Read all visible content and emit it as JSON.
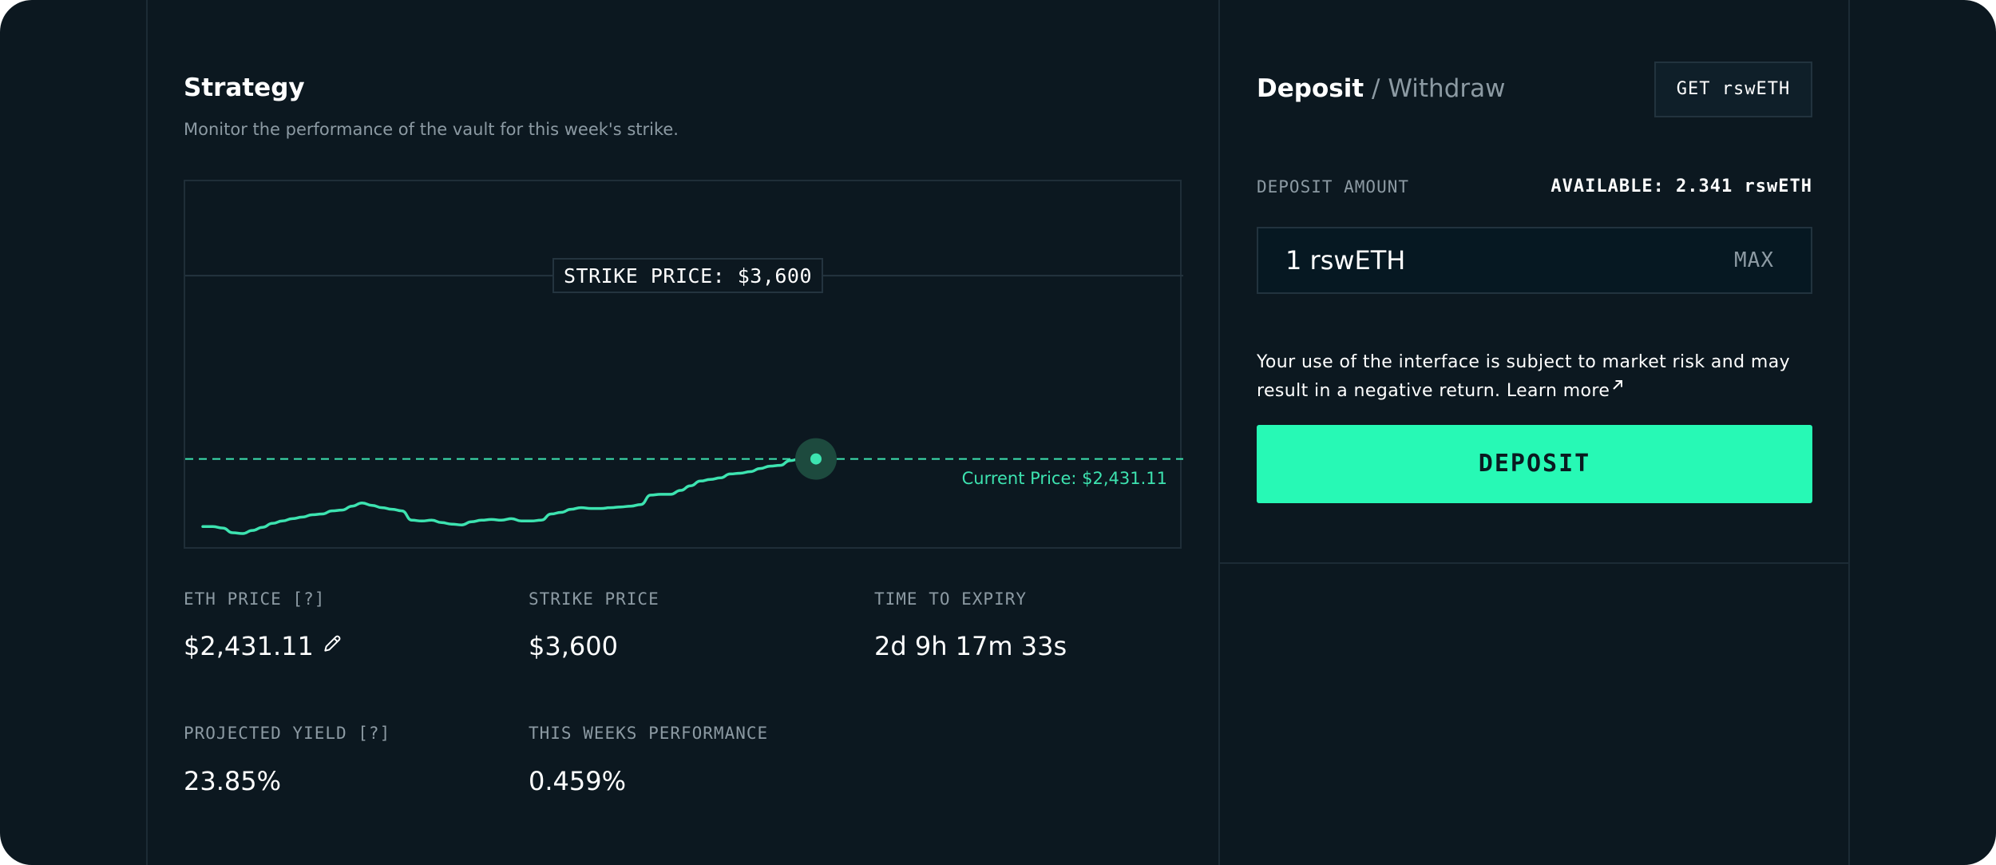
{
  "strategy": {
    "title": "Strategy",
    "subtitle": "Monitor the performance of the vault for this week's strike."
  },
  "chart_data": {
    "type": "line",
    "title": "",
    "xlabel": "",
    "ylabel": "",
    "grid": false,
    "annotations": [
      {
        "label": "STRIKE PRICE: $3,600",
        "value": 3600,
        "style": "solid"
      },
      {
        "label": "Current Price: $2,431.11",
        "value": 2431.11,
        "style": "dashed"
      }
    ],
    "ylim": [
      1950,
      4100
    ],
    "series": [
      {
        "values": [
          2000,
          2000,
          1990,
          1960,
          1955,
          1975,
          1995,
          2020,
          2035,
          2050,
          2060,
          2075,
          2080,
          2100,
          2105,
          2130,
          2150,
          2135,
          2120,
          2110,
          2100,
          2040,
          2035,
          2040,
          2025,
          2015,
          2010,
          2030,
          2040,
          2045,
          2040,
          2050,
          2035,
          2035,
          2040,
          2080,
          2090,
          2110,
          2120,
          2115,
          2115,
          2120,
          2125,
          2130,
          2140,
          2200,
          2205,
          2205,
          2230,
          2260,
          2290,
          2300,
          2310,
          2335,
          2340,
          2350,
          2370,
          2385,
          2390,
          2420,
          2431.11
        ]
      }
    ]
  },
  "stats": {
    "eth_price_label": "ETH PRICE [?]",
    "eth_price_value": "$2,431.11",
    "strike_price_label": "STRIKE PRICE",
    "strike_price_value": "$3,600",
    "expiry_label": "TIME TO EXPIRY",
    "expiry_value": "2d 9h 17m 33s",
    "yield_label": "PROJECTED YIELD [?]",
    "yield_value": "23.85%",
    "performance_label": "THIS WEEKS PERFORMANCE",
    "performance_value": "0.459%"
  },
  "deposit": {
    "tab_deposit": "Deposit",
    "tab_separator": " / ",
    "tab_withdraw": "Withdraw",
    "get_button": "GET rswETH",
    "amount_label": "DEPOSIT AMOUNT",
    "available": "AVAILABLE: 2.341 rswETH",
    "amount_value": "1 rswETH",
    "max_button": "MAX",
    "disclaimer": "Your use of the interface is subject to market risk and may result in a negative return.",
    "learn_more": "Learn more",
    "deposit_button": "DEPOSIT"
  },
  "colors": {
    "background": "#0c1820",
    "accent": "#27f9b5",
    "line": "#3de3b0",
    "muted_text": "#8c9aa3"
  },
  "icons": {
    "edit": "pencil-icon",
    "external": "arrow-up-right-icon"
  }
}
